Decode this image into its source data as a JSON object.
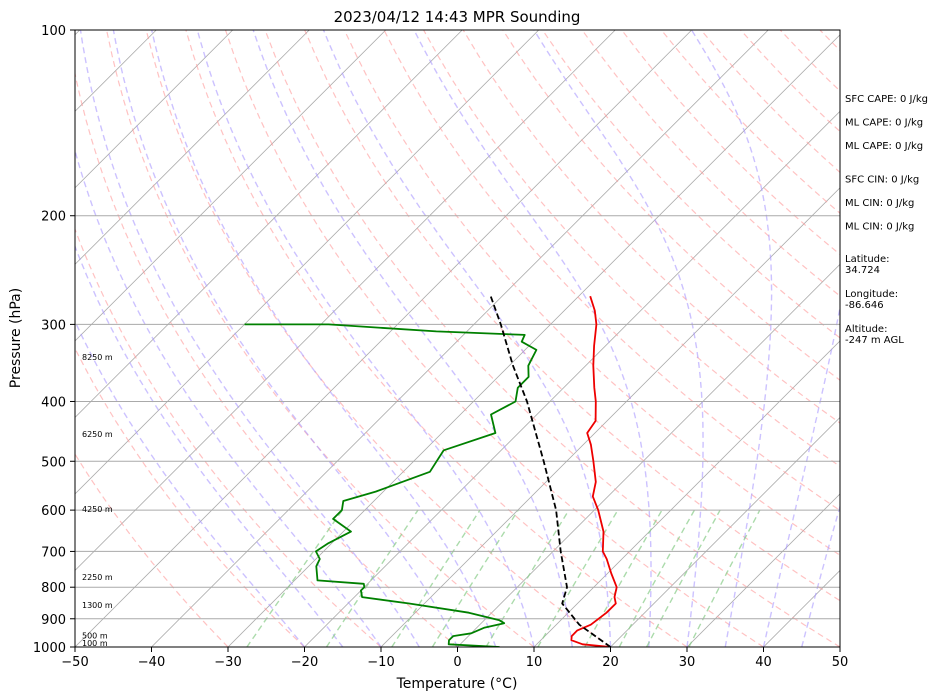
{
  "chart_data": {
    "type": "line",
    "title": "2023/04/12 14:43 MPR Sounding",
    "xlabel": "Temperature (°C)",
    "ylabel": "Pressure (hPa)",
    "xlim": [
      -50,
      50
    ],
    "ylim": [
      1000,
      100
    ],
    "y_scale": "log",
    "skew": true,
    "x_ticks": [
      "−50",
      "−40",
      "−30",
      "−20",
      "−10",
      "0",
      "10",
      "20",
      "30",
      "40",
      "50"
    ],
    "x_tick_values": [
      -50,
      -40,
      -30,
      -20,
      -10,
      0,
      10,
      20,
      30,
      40,
      50
    ],
    "y_ticks": [
      "100",
      "200",
      "300",
      "400",
      "500",
      "600",
      "700",
      "800",
      "900",
      "1000"
    ],
    "y_tick_values": [
      100,
      200,
      300,
      400,
      500,
      600,
      700,
      800,
      900,
      1000
    ],
    "grid": true,
    "background_lines": {
      "isotherm_color": "#aaaaaa",
      "dry_adiabat_color": "#ff9999",
      "moist_adiabat_color": "#aa99ff",
      "mixing_ratio_color": "#88cc88"
    },
    "series": [
      {
        "key": "temperature",
        "color": "#ee0000",
        "points": [
          [
            1000,
            20.0
          ],
          [
            990,
            16.0
          ],
          [
            975,
            14.0
          ],
          [
            960,
            13.5
          ],
          [
            940,
            13.5
          ],
          [
            920,
            14.5
          ],
          [
            880,
            15.0
          ],
          [
            850,
            15.0
          ],
          [
            830,
            14.0
          ],
          [
            800,
            13.0
          ],
          [
            760,
            10.5
          ],
          [
            720,
            8.0
          ],
          [
            700,
            6.5
          ],
          [
            650,
            4.0
          ],
          [
            600,
            0.5
          ],
          [
            570,
            -2.0
          ],
          [
            540,
            -3.5
          ],
          [
            500,
            -6.5
          ],
          [
            470,
            -9.0
          ],
          [
            450,
            -11.0
          ],
          [
            430,
            -11.5
          ],
          [
            400,
            -14.0
          ],
          [
            380,
            -16.0
          ],
          [
            350,
            -19.0
          ],
          [
            325,
            -21.5
          ],
          [
            300,
            -24.0
          ],
          [
            285,
            -26.0
          ],
          [
            270,
            -28.5
          ]
        ]
      },
      {
        "key": "dewpoint",
        "color": "#008000",
        "points": [
          [
            1000,
            5.5
          ],
          [
            990,
            -1.5
          ],
          [
            975,
            -2.0
          ],
          [
            960,
            -2.0
          ],
          [
            950,
            0.0
          ],
          [
            930,
            1.0
          ],
          [
            915,
            3.0
          ],
          [
            905,
            2.0
          ],
          [
            880,
            -3.0
          ],
          [
            850,
            -12.0
          ],
          [
            830,
            -19.0
          ],
          [
            810,
            -20.0
          ],
          [
            800,
            -20.0
          ],
          [
            790,
            -20.5
          ],
          [
            780,
            -27.0
          ],
          [
            740,
            -29.0
          ],
          [
            720,
            -29.5
          ],
          [
            700,
            -31.0
          ],
          [
            680,
            -30.5
          ],
          [
            650,
            -29.0
          ],
          [
            620,
            -33.0
          ],
          [
            600,
            -33.0
          ],
          [
            580,
            -34.0
          ],
          [
            560,
            -31.0
          ],
          [
            520,
            -26.5
          ],
          [
            500,
            -27.0
          ],
          [
            480,
            -27.5
          ],
          [
            450,
            -23.0
          ],
          [
            420,
            -26.0
          ],
          [
            400,
            -24.5
          ],
          [
            380,
            -26.0
          ],
          [
            365,
            -26.0
          ],
          [
            350,
            -27.5
          ],
          [
            330,
            -28.5
          ],
          [
            320,
            -31.5
          ],
          [
            312,
            -32.0
          ],
          [
            308,
            -44.0
          ],
          [
            300,
            -59.0
          ],
          [
            300,
            -70.0
          ]
        ]
      },
      {
        "key": "parcel",
        "color": "#000000",
        "dashed": true,
        "points": [
          [
            1000,
            20.0
          ],
          [
            920,
            13.0
          ],
          [
            850,
            8.0
          ],
          [
            800,
            6.5
          ],
          [
            700,
            1.0
          ],
          [
            600,
            -5.0
          ],
          [
            500,
            -13.0
          ],
          [
            400,
            -23.0
          ],
          [
            350,
            -29.5
          ],
          [
            300,
            -36.5
          ],
          [
            270,
            -41.5
          ]
        ]
      }
    ],
    "height_labels": [
      {
        "p": 1000,
        "text": "100 m"
      },
      {
        "p": 972,
        "text": "500 m"
      },
      {
        "p": 868,
        "text": "1300 m"
      },
      {
        "p": 782,
        "text": "2250 m"
      },
      {
        "p": 606,
        "text": "4250 m"
      },
      {
        "p": 458,
        "text": "6250 m"
      },
      {
        "p": 344,
        "text": "8250 m"
      }
    ]
  },
  "indices": [
    {
      "text": "SFC CAPE: 0 J/kg",
      "group": 0
    },
    {
      "text": "ML CAPE: 0 J/kg",
      "group": 0
    },
    {
      "text": "ML CAPE: 0 J/kg",
      "group": 0
    },
    {
      "text": "SFC CIN: 0 J/kg",
      "group": 1
    },
    {
      "text": "ML CIN: 0 J/kg",
      "group": 1
    },
    {
      "text": "ML CIN: 0 J/kg",
      "group": 1
    }
  ],
  "location": {
    "latitude_label": "Latitude:",
    "latitude_value": "34.724",
    "longitude_label": "Longitude:",
    "longitude_value": "-86.646",
    "altitude_label": "Altitude:",
    "altitude_value": "-247 m AGL"
  }
}
